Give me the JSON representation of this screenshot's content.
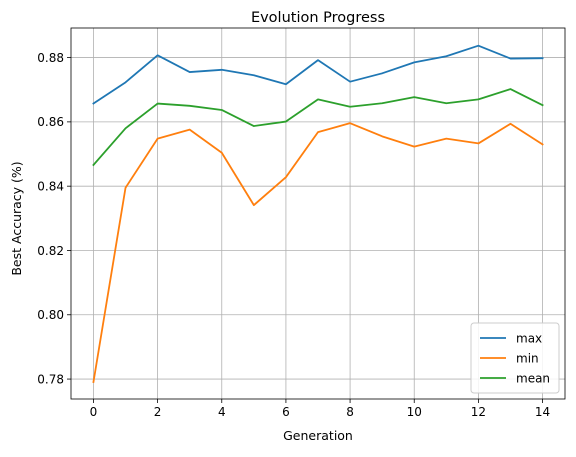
{
  "chart_data": {
    "type": "line",
    "title": "Evolution Progress",
    "xlabel": "Generation",
    "ylabel": "Best Accuracy (%)",
    "x": [
      0,
      1,
      2,
      3,
      4,
      5,
      6,
      7,
      8,
      9,
      10,
      11,
      12,
      13,
      14
    ],
    "xlim": [
      -0.7,
      14.7
    ],
    "ylim": [
      0.7738,
      0.8892
    ],
    "xticks": [
      0,
      2,
      4,
      6,
      8,
      10,
      12,
      14
    ],
    "yticks": [
      0.78,
      0.8,
      0.82,
      0.84,
      0.86,
      0.88
    ],
    "xtick_labels": [
      "0",
      "2",
      "4",
      "6",
      "8",
      "10",
      "12",
      "14"
    ],
    "ytick_labels": [
      "0.78",
      "0.80",
      "0.82",
      "0.84",
      "0.86",
      "0.88"
    ],
    "grid": true,
    "legend_position": "lower-right",
    "series": [
      {
        "name": "max",
        "color": "#1f77b4",
        "values": [
          0.8657,
          0.8723,
          0.8807,
          0.8755,
          0.8762,
          0.8745,
          0.8717,
          0.8792,
          0.8725,
          0.8751,
          0.8785,
          0.8804,
          0.8837,
          0.8797,
          0.8798
        ]
      },
      {
        "name": "min",
        "color": "#ff7f0e",
        "values": [
          0.7791,
          0.8395,
          0.8548,
          0.8576,
          0.8504,
          0.8341,
          0.8428,
          0.8568,
          0.8596,
          0.8555,
          0.8523,
          0.8548,
          0.8533,
          0.8594,
          0.853
        ]
      },
      {
        "name": "mean",
        "color": "#2ca02c",
        "values": [
          0.8466,
          0.858,
          0.8657,
          0.865,
          0.8637,
          0.8587,
          0.8601,
          0.867,
          0.8647,
          0.8658,
          0.8677,
          0.8658,
          0.867,
          0.8702,
          0.8652
        ]
      }
    ]
  }
}
